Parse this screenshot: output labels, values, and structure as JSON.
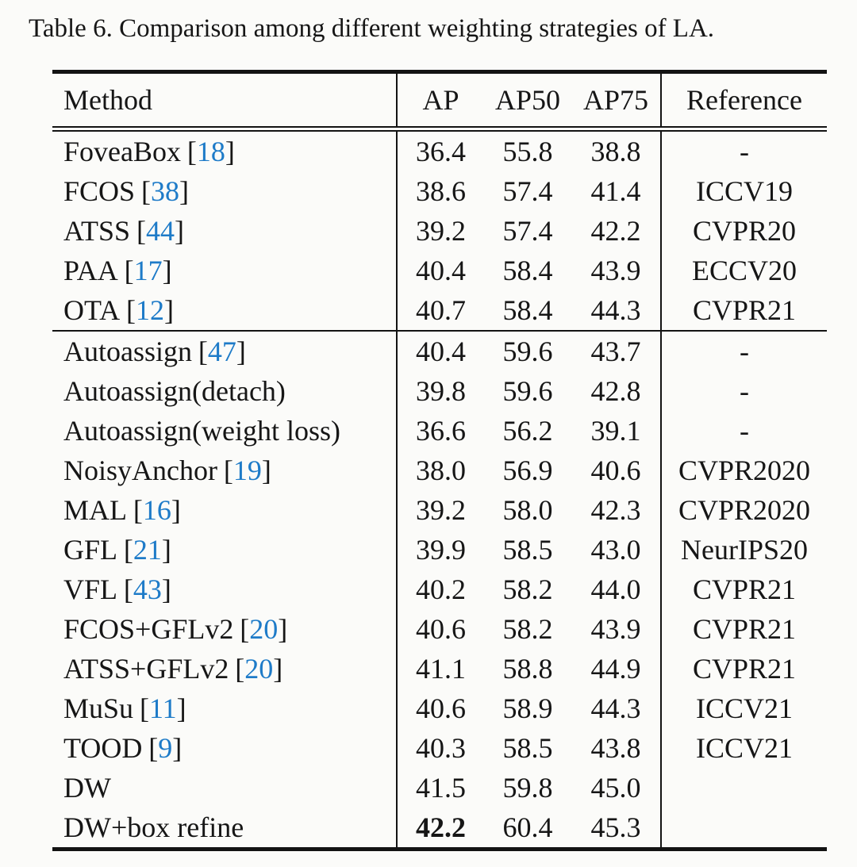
{
  "caption": "Table 6. Comparison among different weighting strategies of LA.",
  "colors": {
    "citation_blue": "#1e7bc8",
    "text": "#161616",
    "rule": "#131313",
    "background": "#fbfbf9"
  },
  "citation_format": {
    "open": "[",
    "close": "]"
  },
  "table": {
    "headers": {
      "method": "Method",
      "ap": "AP",
      "ap50": "AP50",
      "ap75": "AP75",
      "reference": "Reference"
    },
    "rows": [
      {
        "method": "FoveaBox",
        "cite": "18",
        "ap": "36.4",
        "ap50": "55.8",
        "ap75": "38.8",
        "reference": "-"
      },
      {
        "method": "FCOS",
        "cite": "38",
        "ap": "38.6",
        "ap50": "57.4",
        "ap75": "41.4",
        "reference": "ICCV19"
      },
      {
        "method": "ATSS",
        "cite": "44",
        "ap": "39.2",
        "ap50": "57.4",
        "ap75": "42.2",
        "reference": "CVPR20"
      },
      {
        "method": "PAA",
        "cite": "17",
        "ap": "40.4",
        "ap50": "58.4",
        "ap75": "43.9",
        "reference": "ECCV20"
      },
      {
        "method": "OTA",
        "cite": "12",
        "ap": "40.7",
        "ap50": "58.4",
        "ap75": "44.3",
        "reference": "CVPR21"
      },
      {
        "method": "Autoassign",
        "cite": "47",
        "ap": "40.4",
        "ap50": "59.6",
        "ap75": "43.7",
        "reference": "-",
        "separator_above": true
      },
      {
        "method": "Autoassign(detach)",
        "cite": null,
        "ap": "39.8",
        "ap50": "59.6",
        "ap75": "42.8",
        "reference": "-"
      },
      {
        "method": "Autoassign(weight loss)",
        "cite": null,
        "ap": "36.6",
        "ap50": "56.2",
        "ap75": "39.1",
        "reference": "-"
      },
      {
        "method": "NoisyAnchor",
        "cite": "19",
        "ap": "38.0",
        "ap50": "56.9",
        "ap75": "40.6",
        "reference": "CVPR2020"
      },
      {
        "method": "MAL",
        "cite": "16",
        "ap": "39.2",
        "ap50": "58.0",
        "ap75": "42.3",
        "reference": "CVPR2020"
      },
      {
        "method": "GFL",
        "cite": "21",
        "ap": "39.9",
        "ap50": "58.5",
        "ap75": "43.0",
        "reference": "NeurIPS20"
      },
      {
        "method": "VFL",
        "cite": "43",
        "ap": "40.2",
        "ap50": "58.2",
        "ap75": "44.0",
        "reference": "CVPR21"
      },
      {
        "method": "FCOS+GFLv2",
        "cite": "20",
        "ap": "40.6",
        "ap50": "58.2",
        "ap75": "43.9",
        "reference": "CVPR21"
      },
      {
        "method": "ATSS+GFLv2",
        "cite": "20",
        "ap": "41.1",
        "ap50": "58.8",
        "ap75": "44.9",
        "reference": "CVPR21"
      },
      {
        "method": "MuSu",
        "cite": "11",
        "ap": "40.6",
        "ap50": "58.9",
        "ap75": "44.3",
        "reference": "ICCV21"
      },
      {
        "method": "TOOD",
        "cite": "9",
        "ap": "40.3",
        "ap50": "58.5",
        "ap75": "43.8",
        "reference": "ICCV21"
      },
      {
        "method": "DW",
        "cite": null,
        "ap": "41.5",
        "ap50": "59.8",
        "ap75": "45.0",
        "reference": ""
      },
      {
        "method": "DW+box refine",
        "cite": null,
        "ap": "42.2",
        "ap50": "60.4",
        "ap75": "45.3",
        "reference": "",
        "ap_bold": true
      }
    ]
  }
}
